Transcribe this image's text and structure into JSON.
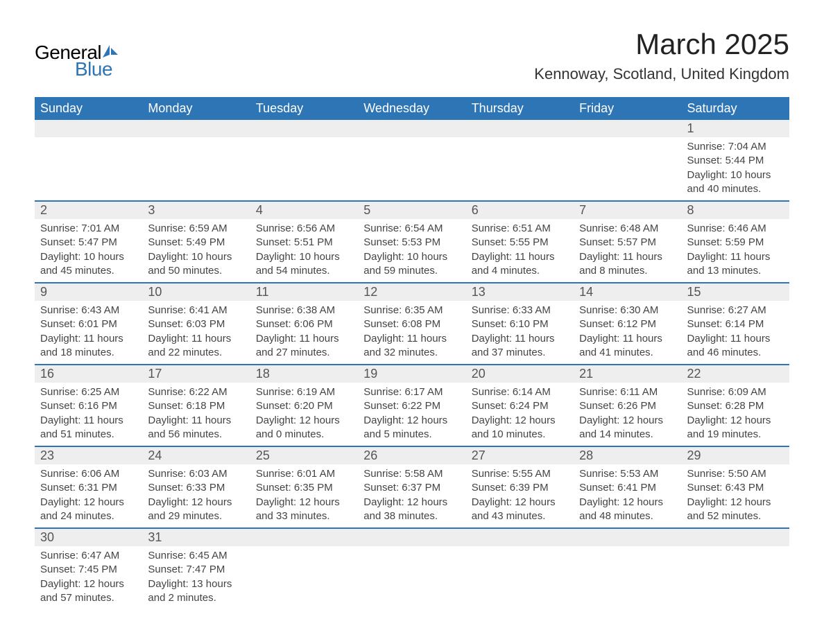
{
  "logo": {
    "general": "General",
    "blue": "Blue",
    "sail_color": "#2e75b6"
  },
  "title": "March 2025",
  "location": "Kennoway, Scotland, United Kingdom",
  "colors": {
    "header_bg": "#2e75b6",
    "header_text": "#ffffff",
    "daynum_bg": "#eeeeee",
    "daynum_text": "#555555",
    "body_text": "#444444",
    "row_border": "#2e75b6"
  },
  "day_headers": [
    "Sunday",
    "Monday",
    "Tuesday",
    "Wednesday",
    "Thursday",
    "Friday",
    "Saturday"
  ],
  "weeks": [
    {
      "nums": [
        "",
        "",
        "",
        "",
        "",
        "",
        "1"
      ],
      "content": [
        "",
        "",
        "",
        "",
        "",
        "",
        "Sunrise: 7:04 AM\nSunset: 5:44 PM\nDaylight: 10 hours and 40 minutes."
      ]
    },
    {
      "nums": [
        "2",
        "3",
        "4",
        "5",
        "6",
        "7",
        "8"
      ],
      "content": [
        "Sunrise: 7:01 AM\nSunset: 5:47 PM\nDaylight: 10 hours and 45 minutes.",
        "Sunrise: 6:59 AM\nSunset: 5:49 PM\nDaylight: 10 hours and 50 minutes.",
        "Sunrise: 6:56 AM\nSunset: 5:51 PM\nDaylight: 10 hours and 54 minutes.",
        "Sunrise: 6:54 AM\nSunset: 5:53 PM\nDaylight: 10 hours and 59 minutes.",
        "Sunrise: 6:51 AM\nSunset: 5:55 PM\nDaylight: 11 hours and 4 minutes.",
        "Sunrise: 6:48 AM\nSunset: 5:57 PM\nDaylight: 11 hours and 8 minutes.",
        "Sunrise: 6:46 AM\nSunset: 5:59 PM\nDaylight: 11 hours and 13 minutes."
      ]
    },
    {
      "nums": [
        "9",
        "10",
        "11",
        "12",
        "13",
        "14",
        "15"
      ],
      "content": [
        "Sunrise: 6:43 AM\nSunset: 6:01 PM\nDaylight: 11 hours and 18 minutes.",
        "Sunrise: 6:41 AM\nSunset: 6:03 PM\nDaylight: 11 hours and 22 minutes.",
        "Sunrise: 6:38 AM\nSunset: 6:06 PM\nDaylight: 11 hours and 27 minutes.",
        "Sunrise: 6:35 AM\nSunset: 6:08 PM\nDaylight: 11 hours and 32 minutes.",
        "Sunrise: 6:33 AM\nSunset: 6:10 PM\nDaylight: 11 hours and 37 minutes.",
        "Sunrise: 6:30 AM\nSunset: 6:12 PM\nDaylight: 11 hours and 41 minutes.",
        "Sunrise: 6:27 AM\nSunset: 6:14 PM\nDaylight: 11 hours and 46 minutes."
      ]
    },
    {
      "nums": [
        "16",
        "17",
        "18",
        "19",
        "20",
        "21",
        "22"
      ],
      "content": [
        "Sunrise: 6:25 AM\nSunset: 6:16 PM\nDaylight: 11 hours and 51 minutes.",
        "Sunrise: 6:22 AM\nSunset: 6:18 PM\nDaylight: 11 hours and 56 minutes.",
        "Sunrise: 6:19 AM\nSunset: 6:20 PM\nDaylight: 12 hours and 0 minutes.",
        "Sunrise: 6:17 AM\nSunset: 6:22 PM\nDaylight: 12 hours and 5 minutes.",
        "Sunrise: 6:14 AM\nSunset: 6:24 PM\nDaylight: 12 hours and 10 minutes.",
        "Sunrise: 6:11 AM\nSunset: 6:26 PM\nDaylight: 12 hours and 14 minutes.",
        "Sunrise: 6:09 AM\nSunset: 6:28 PM\nDaylight: 12 hours and 19 minutes."
      ]
    },
    {
      "nums": [
        "23",
        "24",
        "25",
        "26",
        "27",
        "28",
        "29"
      ],
      "content": [
        "Sunrise: 6:06 AM\nSunset: 6:31 PM\nDaylight: 12 hours and 24 minutes.",
        "Sunrise: 6:03 AM\nSunset: 6:33 PM\nDaylight: 12 hours and 29 minutes.",
        "Sunrise: 6:01 AM\nSunset: 6:35 PM\nDaylight: 12 hours and 33 minutes.",
        "Sunrise: 5:58 AM\nSunset: 6:37 PM\nDaylight: 12 hours and 38 minutes.",
        "Sunrise: 5:55 AM\nSunset: 6:39 PM\nDaylight: 12 hours and 43 minutes.",
        "Sunrise: 5:53 AM\nSunset: 6:41 PM\nDaylight: 12 hours and 48 minutes.",
        "Sunrise: 5:50 AM\nSunset: 6:43 PM\nDaylight: 12 hours and 52 minutes."
      ]
    },
    {
      "nums": [
        "30",
        "31",
        "",
        "",
        "",
        "",
        ""
      ],
      "content": [
        "Sunrise: 6:47 AM\nSunset: 7:45 PM\nDaylight: 12 hours and 57 minutes.",
        "Sunrise: 6:45 AM\nSunset: 7:47 PM\nDaylight: 13 hours and 2 minutes.",
        "",
        "",
        "",
        "",
        ""
      ]
    }
  ]
}
